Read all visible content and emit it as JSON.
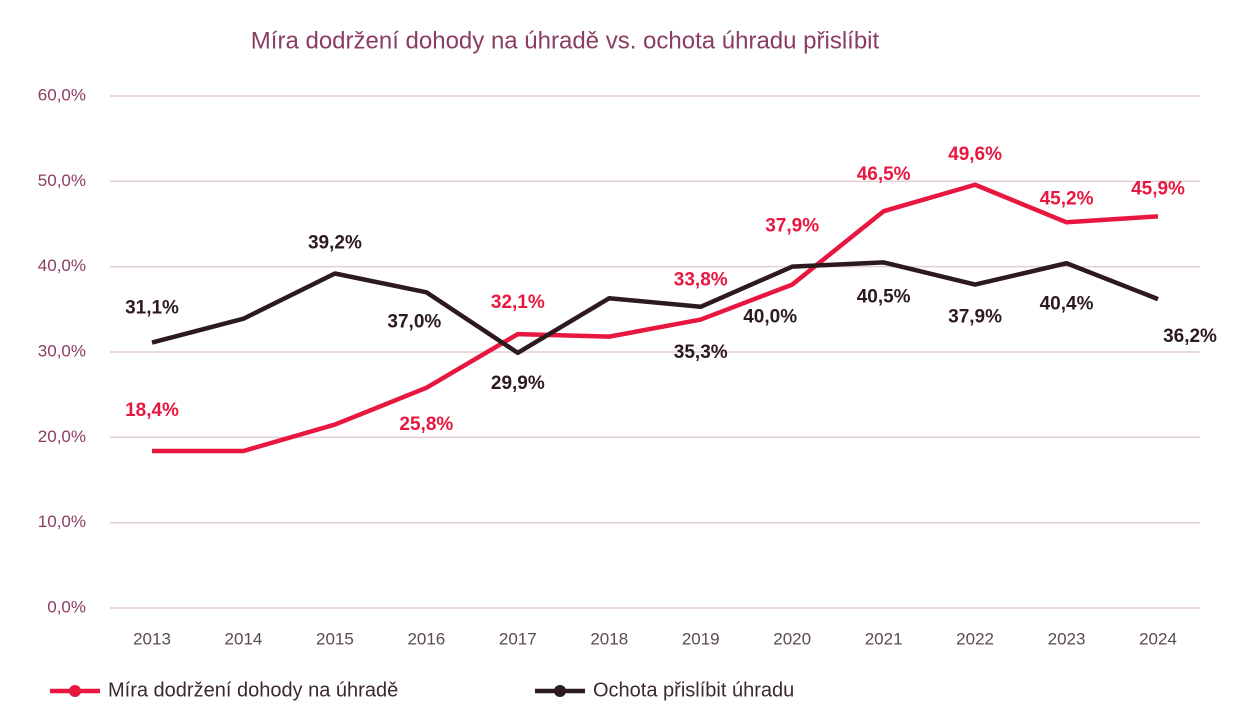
{
  "chart_data": {
    "type": "line",
    "title": "Míra dodržení dohody na úhradě vs. ochota úhradu přislíbit",
    "categories": [
      "2013",
      "2014",
      "2015",
      "2016",
      "2017",
      "2018",
      "2019",
      "2020",
      "2021",
      "2022",
      "2023",
      "2024"
    ],
    "series": [
      {
        "name": "Míra dodržení dohody na úhradě",
        "color": "#e8173f",
        "values": [
          18.4,
          18.4,
          21.5,
          25.8,
          32.1,
          31.8,
          33.8,
          37.9,
          46.5,
          49.6,
          45.2,
          45.9
        ],
        "value_labels": [
          "18,4%",
          null,
          null,
          "25,8%",
          "32,1%",
          null,
          "33,8%",
          "37,9%",
          "46,5%",
          "49,6%",
          "45,2%",
          "45,9%"
        ]
      },
      {
        "name": "Ochota přislíbit úhradu",
        "color": "#2d1a1f",
        "values": [
          31.1,
          33.9,
          39.2,
          37.0,
          29.9,
          36.3,
          35.3,
          40.0,
          40.5,
          37.9,
          40.4,
          36.2
        ],
        "value_labels": [
          "31,1%",
          null,
          "39,2%",
          "37,0%",
          "29,9%",
          null,
          "35,3%",
          "40,0%",
          "40,5%",
          "37,9%",
          "40,4%",
          "36,2%"
        ]
      }
    ],
    "ylim": [
      0,
      60
    ],
    "yticks": [
      {
        "value": 0,
        "label": "0,0%"
      },
      {
        "value": 10,
        "label": "10,0%"
      },
      {
        "value": 20,
        "label": "20,0%"
      },
      {
        "value": 30,
        "label": "30,0%"
      },
      {
        "value": 40,
        "label": "40,0%"
      },
      {
        "value": 50,
        "label": "50,0%"
      },
      {
        "value": 60,
        "label": "60,0%"
      }
    ],
    "grid": true,
    "legend": "bottom"
  }
}
